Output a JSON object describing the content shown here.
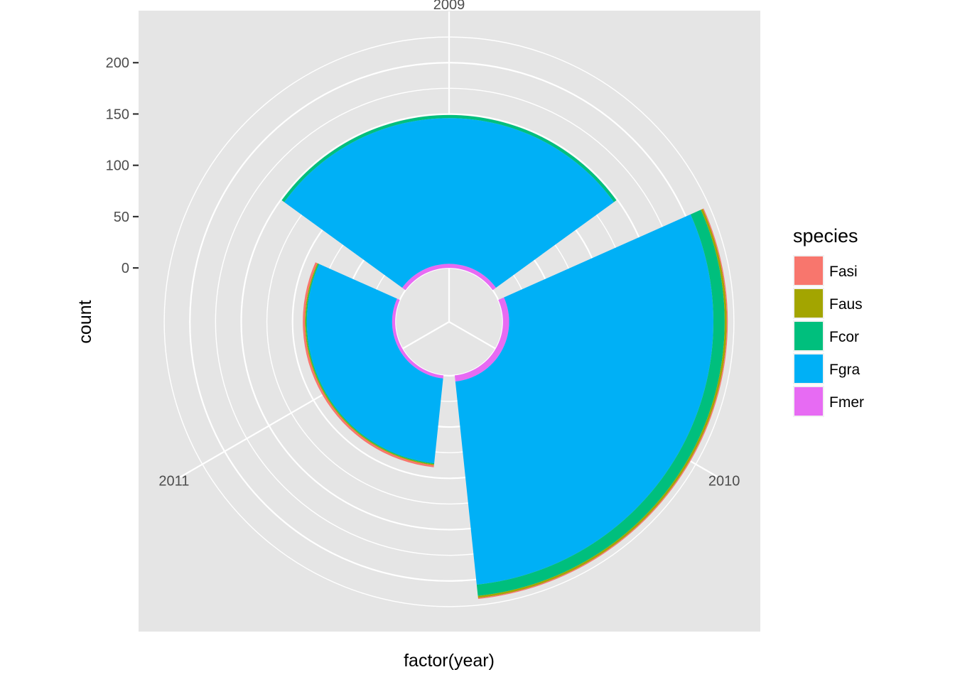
{
  "chart_data": {
    "type": "bar",
    "coord": "polar",
    "xlabel": "factor(year)",
    "ylabel": "count",
    "categories": [
      "2009",
      "2010",
      "2011"
    ],
    "y_ticks": [
      0,
      50,
      100,
      150,
      200
    ],
    "ylim": [
      -30,
      250
    ],
    "grid": true,
    "legend_title": "species",
    "legend_placement": "right",
    "series": [
      {
        "name": "Fasi",
        "color": "#F8766D",
        "values": [
          0,
          1,
          2
        ]
      },
      {
        "name": "Faus",
        "color": "#A3A500",
        "values": [
          0,
          2,
          1
        ]
      },
      {
        "name": "Fcor",
        "color": "#00BF7D",
        "values": [
          3,
          11,
          1
        ]
      },
      {
        "name": "Fgra",
        "color": "#00B0F6",
        "values": [
          142,
          199,
          83
        ]
      },
      {
        "name": "Fmer",
        "color": "#E76BF3",
        "values": [
          4,
          6,
          3
        ]
      }
    ]
  }
}
